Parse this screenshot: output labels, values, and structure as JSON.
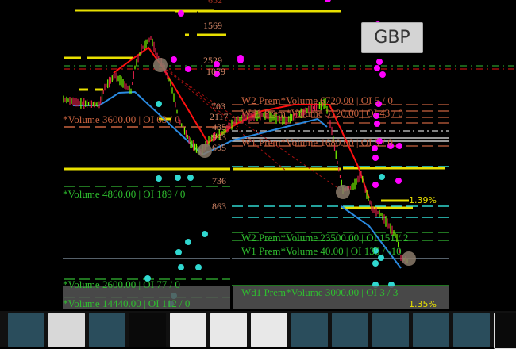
{
  "instrument_button": "GBP",
  "price_levels": [
    "652",
    "1569",
    "2529",
    "1079",
    "703",
    "2117",
    "435",
    "993",
    "605",
    "736",
    "863"
  ],
  "labels_upper": {
    "left": "*Volume 3600.00 | OI 63 / 0",
    "w2": "W2  Prem*Volume 6720.00 | OI 5 / 0",
    "wd1": "Wd1  Prem*Volume 3120.00 | OI 43 / 0",
    "w1": "W1  Prem*Volume 1680.00 | OI 5 / 0"
  },
  "labels_lower": {
    "left1": "*Volume 4860.00 | OI 189 / 0",
    "w2": "W2  Prem*Volume 23500.00 | OI 151 / 2",
    "w1": "W1  Prem*Volume 40.00 | OI 135 / -10",
    "left2": "*Volume 2600.00 | OI 77 / 0",
    "left3": "*Volume 14440.00 | OI 112 / 0",
    "wd1": "Wd1  Prem*Volume 3000.00 | OI 3 / 3"
  },
  "percent_labels": [
    "1.39%",
    "1.35%"
  ],
  "colors": {
    "call_text": "#c8623f",
    "put_text": "#2fbf2f",
    "yellow": "#e8e000",
    "magenta": "#ff00ff",
    "cyan": "#30d8d0",
    "blue": "#2a8ae0",
    "red": "#ff1010"
  },
  "thumbnails": [
    "chart-blue",
    "chart-light",
    "chart-blue",
    "chart-dark",
    "document",
    "document",
    "document",
    "chart-blue",
    "chart-blue",
    "chart-blue",
    "chart-blue",
    "chart-blue",
    "chart-dark-active"
  ]
}
